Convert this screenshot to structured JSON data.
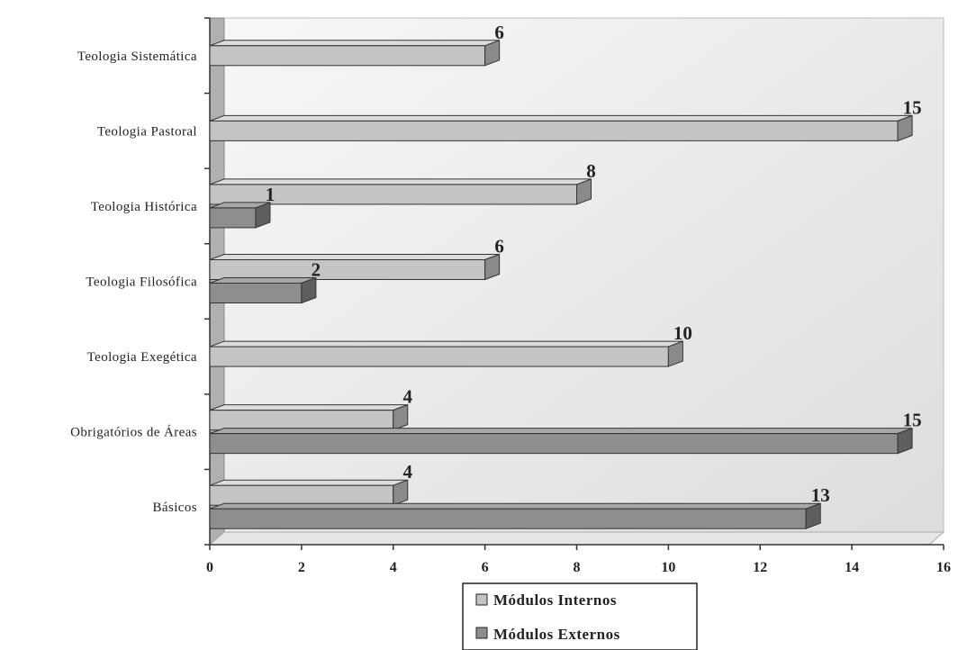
{
  "chart_data": {
    "type": "bar",
    "orientation": "horizontal",
    "style": "3d",
    "categories": [
      "Teologia Sistemática",
      "Teologia Pastoral",
      "Teologia Histórica",
      "Teologia Filosófica",
      "Teologia Exegética",
      "Obrigatórios de Áreas",
      "Básicos"
    ],
    "series": [
      {
        "name": "Módulos Internos",
        "color": "#c4c4c4",
        "values": [
          6,
          15,
          8,
          6,
          10,
          4,
          4
        ]
      },
      {
        "name": "Módulos Externos",
        "color": "#8e8e8e",
        "values": [
          null,
          null,
          1,
          2,
          null,
          15,
          13
        ]
      }
    ],
    "data_labels": true,
    "xlim": [
      0,
      16
    ],
    "xticks": [
      "0",
      "2",
      "4",
      "6",
      "8",
      "10",
      "12",
      "14",
      "16"
    ],
    "grid": false,
    "legend_position": "bottom",
    "title": "",
    "xlabel": "",
    "ylabel": ""
  }
}
